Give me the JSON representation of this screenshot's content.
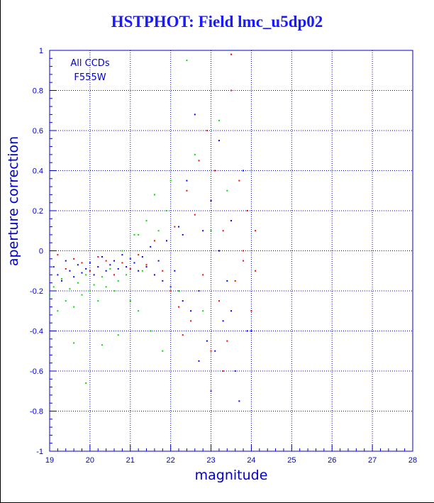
{
  "chart_data": {
    "type": "scatter",
    "title": "HSTPHOT: Field lmc_u5dp02",
    "xlabel": "magnitude",
    "ylabel": "aperture correction",
    "xlim": [
      19,
      28
    ],
    "ylim": [
      -1,
      1
    ],
    "xticks": [
      "19",
      "20",
      "21",
      "22",
      "23",
      "24",
      "25",
      "26",
      "27",
      "28"
    ],
    "yticks": [
      "1",
      "0.8",
      "0.6",
      "0.4",
      "0.2",
      "0",
      "-0.2",
      "-0.4",
      "-0.6",
      "-0.8",
      "-1"
    ],
    "grid": true,
    "annotations": [
      "All CCDs",
      "F555W"
    ],
    "colors": {
      "axis": "#0000cc",
      "title": "#1a1aff",
      "series": [
        "#0000ff",
        "#ff0000",
        "#00dd00"
      ]
    },
    "series": [
      {
        "color": "#0000ff",
        "points": [
          [
            19.1,
            -0.08
          ],
          [
            19.2,
            -0.12
          ],
          [
            19.3,
            -0.15
          ],
          [
            19.4,
            -0.05
          ],
          [
            19.5,
            -0.1
          ],
          [
            19.6,
            -0.13
          ],
          [
            19.7,
            -0.07
          ],
          [
            19.8,
            -0.11
          ],
          [
            19.9,
            -0.09
          ],
          [
            20.0,
            -0.06
          ],
          [
            20.1,
            -0.12
          ],
          [
            20.2,
            -0.08
          ],
          [
            20.3,
            -0.03
          ],
          [
            20.4,
            -0.1
          ],
          [
            20.5,
            -0.07
          ],
          [
            20.6,
            -0.05
          ],
          [
            20.7,
            -0.09
          ],
          [
            20.8,
            -0.02
          ],
          [
            20.9,
            -0.08
          ],
          [
            21.0,
            -0.04
          ],
          [
            21.1,
            -0.06
          ],
          [
            21.2,
            -0.1
          ],
          [
            21.3,
            -0.03
          ],
          [
            21.4,
            -0.08
          ],
          [
            21.5,
            0.02
          ],
          [
            21.6,
            -0.12
          ],
          [
            21.7,
            -0.05
          ],
          [
            21.8,
            -0.15
          ],
          [
            21.9,
            0.05
          ],
          [
            22.0,
            -0.18
          ],
          [
            22.1,
            -0.1
          ],
          [
            22.2,
            0.12
          ],
          [
            22.3,
            -0.25
          ],
          [
            22.4,
            0.35
          ],
          [
            22.5,
            -0.3
          ],
          [
            22.6,
            0.68
          ],
          [
            22.7,
            -0.2
          ],
          [
            22.8,
            0.1
          ],
          [
            22.9,
            -0.45
          ],
          [
            23.0,
            0.25
          ],
          [
            23.1,
            -0.5
          ],
          [
            23.2,
            0.55
          ],
          [
            23.3,
            -0.35
          ],
          [
            23.4,
            -0.15
          ],
          [
            23.5,
            0.15
          ],
          [
            23.6,
            -0.6
          ],
          [
            23.7,
            -0.75
          ],
          [
            23.8,
            0.4
          ],
          [
            23.9,
            -0.4
          ],
          [
            24.0,
            -0.4
          ],
          [
            22.3,
            0.08
          ],
          [
            22.7,
            -0.55
          ],
          [
            23.0,
            -0.7
          ],
          [
            23.2,
            0.0
          ],
          [
            23.5,
            -0.3
          ]
        ]
      },
      {
        "color": "#ff0000",
        "points": [
          [
            19.2,
            -0.02
          ],
          [
            19.4,
            -0.09
          ],
          [
            19.6,
            -0.04
          ],
          [
            19.8,
            -0.06
          ],
          [
            20.0,
            -0.1
          ],
          [
            20.2,
            -0.03
          ],
          [
            20.4,
            -0.05
          ],
          [
            20.6,
            -0.12
          ],
          [
            20.8,
            -0.06
          ],
          [
            21.0,
            -0.09
          ],
          [
            21.2,
            -0.02
          ],
          [
            21.4,
            -0.07
          ],
          [
            21.6,
            0.05
          ],
          [
            21.8,
            -0.1
          ],
          [
            22.0,
            -0.2
          ],
          [
            22.1,
            0.12
          ],
          [
            22.2,
            -0.28
          ],
          [
            22.4,
            0.3
          ],
          [
            22.5,
            -0.35
          ],
          [
            22.6,
            0.18
          ],
          [
            22.8,
            -0.12
          ],
          [
            22.9,
            0.6
          ],
          [
            23.0,
            -0.5
          ],
          [
            23.1,
            0.4
          ],
          [
            23.2,
            -0.25
          ],
          [
            23.3,
            0.1
          ],
          [
            23.4,
            -0.45
          ],
          [
            23.5,
            0.8
          ],
          [
            23.6,
            -0.15
          ],
          [
            23.7,
            0.35
          ],
          [
            23.8,
            -0.05
          ],
          [
            23.9,
            0.2
          ],
          [
            24.0,
            -0.3
          ],
          [
            24.1,
            0.1
          ],
          [
            23.5,
            0.98
          ],
          [
            23.3,
            -0.6
          ],
          [
            22.3,
            -0.42
          ],
          [
            22.7,
            0.45
          ],
          [
            23.8,
            0.0
          ],
          [
            24.1,
            -0.1
          ]
        ]
      },
      {
        "color": "#00dd00",
        "points": [
          [
            19.0,
            -0.22
          ],
          [
            19.1,
            -0.18
          ],
          [
            19.2,
            -0.3
          ],
          [
            19.3,
            -0.14
          ],
          [
            19.4,
            -0.25
          ],
          [
            19.5,
            -0.19
          ],
          [
            19.6,
            -0.28
          ],
          [
            19.7,
            -0.16
          ],
          [
            19.8,
            -0.22
          ],
          [
            19.9,
            -0.12
          ],
          [
            20.0,
            -0.2
          ],
          [
            20.1,
            -0.17
          ],
          [
            20.2,
            -0.25
          ],
          [
            20.3,
            -0.13
          ],
          [
            20.4,
            -0.18
          ],
          [
            20.5,
            -0.09
          ],
          [
            20.6,
            -0.2
          ],
          [
            20.7,
            -0.15
          ],
          [
            20.8,
            0.0
          ],
          [
            20.9,
            -0.12
          ],
          [
            21.0,
            -0.25
          ],
          [
            21.1,
            0.08
          ],
          [
            21.2,
            -0.3
          ],
          [
            21.3,
            -0.1
          ],
          [
            21.4,
            0.15
          ],
          [
            21.5,
            -0.4
          ],
          [
            21.6,
            0.28
          ],
          [
            21.7,
            0.1
          ],
          [
            21.8,
            -0.5
          ],
          [
            21.9,
            0.2
          ],
          [
            22.0,
            0.35
          ],
          [
            22.2,
            -0.2
          ],
          [
            22.4,
            0.95
          ],
          [
            22.6,
            0.48
          ],
          [
            22.8,
            -0.3
          ],
          [
            23.0,
            0.1
          ],
          [
            23.2,
            0.65
          ],
          [
            23.4,
            0.3
          ],
          [
            19.6,
            -0.46
          ],
          [
            19.9,
            -0.66
          ],
          [
            20.3,
            -0.47
          ],
          [
            20.7,
            -0.42
          ],
          [
            21.2,
            0.08
          ]
        ]
      }
    ]
  }
}
